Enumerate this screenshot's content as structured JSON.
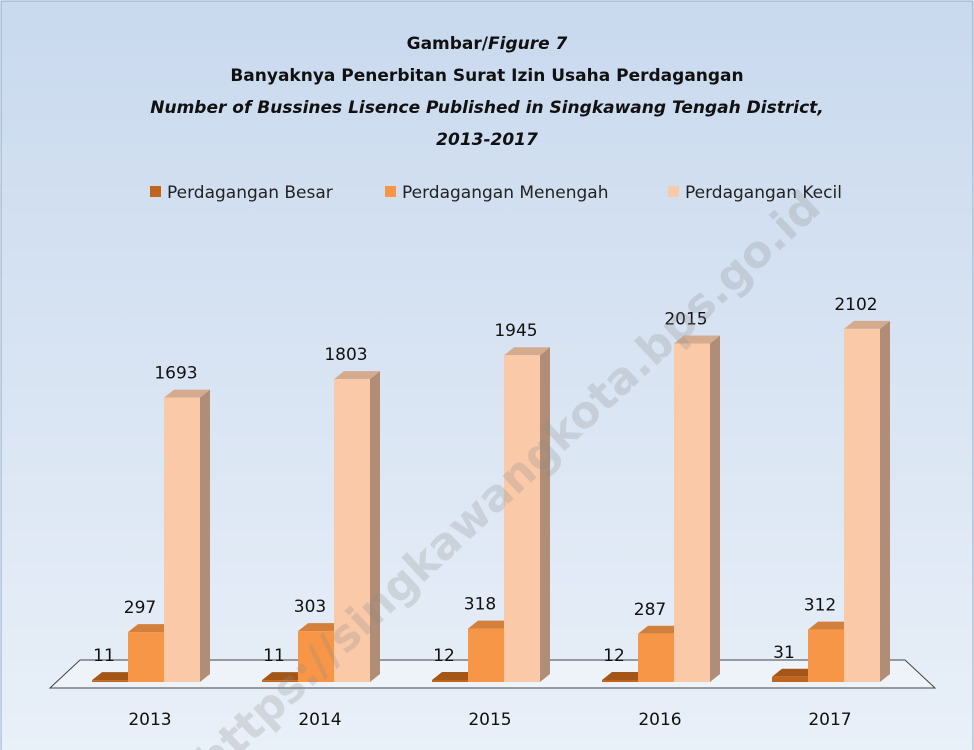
{
  "chart_data": {
    "type": "bar3d",
    "title": [
      "Gambar/",
      "Figure 7"
    ],
    "subtitle": "Banyaknya Penerbitan Surat Izin Usaha Perdagangan",
    "subtitle_en": "Number of Bussines Lisence Published in Singkawang Tengah District,",
    "period": "2013-2017",
    "categories": [
      "2013",
      "2014",
      "2015",
      "2016",
      "2017"
    ],
    "series": [
      {
        "name": "Perdagangan Besar",
        "color": "#c0651b",
        "values": [
          11,
          11,
          12,
          12,
          31
        ]
      },
      {
        "name": "Perdagangan Menengah",
        "color": "#f79646",
        "values": [
          297,
          303,
          318,
          287,
          312
        ]
      },
      {
        "name": "Perdagangan Kecil",
        "color": "#fac9a8",
        "values": [
          1693,
          1803,
          1945,
          2015,
          2102
        ]
      }
    ],
    "legend": "top",
    "watermark": "https://singkawangkota.bps.go.id"
  }
}
